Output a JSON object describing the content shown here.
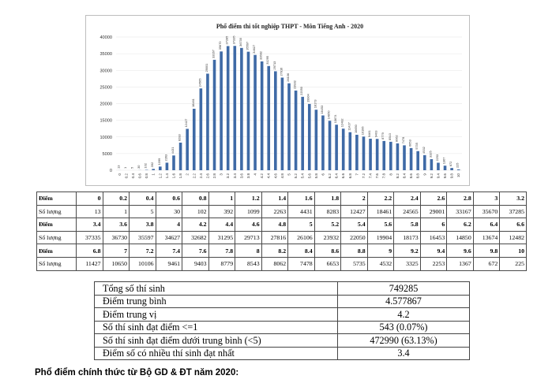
{
  "chart_data": {
    "type": "bar",
    "title": "Phổ điểm thi tốt nghiệp THPT - Môn Tiếng Anh - 2020",
    "ylim": [
      0,
      40000
    ],
    "yticks": [
      "0",
      "5000",
      "10000",
      "15000",
      "20000",
      "25000",
      "30000",
      "35000",
      "40000"
    ],
    "categories": [
      "0",
      "0.2",
      "0.4",
      "0.6",
      "0.8",
      "1",
      "1.2",
      "1.4",
      "1.6",
      "1.8",
      "2",
      "2.2",
      "2.4",
      "2.6",
      "2.8",
      "3",
      "3.2",
      "3.4",
      "3.6",
      "3.8",
      "4",
      "4.2",
      "4.4",
      "4.6",
      "4.8",
      "5",
      "5.2",
      "5.4",
      "5.6",
      "5.8",
      "6",
      "6.2",
      "6.4",
      "6.6",
      "6.8",
      "7",
      "7.2",
      "7.4",
      "7.6",
      "7.8",
      "8",
      "8.2",
      "8.4",
      "8.6",
      "8.8",
      "9",
      "9.2",
      "9.4",
      "9.6",
      "9.8",
      "10"
    ],
    "values": [
      13,
      1,
      5,
      30,
      102,
      392,
      1099,
      2263,
      4431,
      8283,
      12427,
      18461,
      24565,
      29001,
      33167,
      35670,
      37285,
      37335,
      36730,
      35597,
      34627,
      32682,
      31295,
      29713,
      27816,
      26106,
      23932,
      22050,
      19904,
      18173,
      16453,
      14850,
      13674,
      12482,
      11427,
      10650,
      10106,
      9461,
      9403,
      8779,
      8543,
      8062,
      7478,
      6653,
      5735,
      4532,
      3325,
      2253,
      1367,
      672,
      225
    ],
    "grid": true,
    "legend": "none"
  },
  "score_table": {
    "rows": [
      {
        "label": "Điểm",
        "cells": [
          "0",
          "0.2",
          "0.4",
          "0.6",
          "0.8",
          "1",
          "1.2",
          "1.4",
          "1.6",
          "1.8",
          "2",
          "2.2",
          "2.4",
          "2.6",
          "2.8",
          "3",
          "3.2"
        ]
      },
      {
        "label": "Số lượng",
        "cells": [
          "13",
          "1",
          "5",
          "30",
          "102",
          "392",
          "1099",
          "2263",
          "4431",
          "8283",
          "12427",
          "18461",
          "24565",
          "29001",
          "33167",
          "35670",
          "37285"
        ]
      },
      {
        "label": "Điểm",
        "cells": [
          "3.4",
          "3.6",
          "3.8",
          "4",
          "4.2",
          "4.4",
          "4.6",
          "4.8",
          "5",
          "5.2",
          "5.4",
          "5.6",
          "5.8",
          "6",
          "6.2",
          "6.4",
          "6.6"
        ]
      },
      {
        "label": "Số lượng",
        "cells": [
          "37335",
          "36730",
          "35597",
          "34627",
          "32682",
          "31295",
          "29713",
          "27816",
          "26106",
          "23932",
          "22050",
          "19904",
          "18173",
          "16453",
          "14850",
          "13674",
          "12482"
        ]
      },
      {
        "label": "Điểm",
        "cells": [
          "6.8",
          "7",
          "7.2",
          "7.4",
          "7.6",
          "7.8",
          "8",
          "8.2",
          "8.4",
          "8.6",
          "8.8",
          "9",
          "9.2",
          "9.4",
          "9.6",
          "9.8",
          "10"
        ]
      },
      {
        "label": "Số lượng",
        "cells": [
          "11427",
          "10650",
          "10106",
          "9461",
          "9403",
          "8779",
          "8543",
          "8062",
          "7478",
          "6653",
          "5735",
          "4532",
          "3325",
          "2253",
          "1367",
          "672",
          "225"
        ]
      }
    ]
  },
  "stats_table": {
    "rows": [
      {
        "label": "Tổng số thí sinh",
        "value": "749285"
      },
      {
        "label": "Điểm trung bình",
        "value": "4.577867"
      },
      {
        "label": "Điểm trung vị",
        "value": "4.2"
      },
      {
        "label": "Số thí sinh đạt điểm <=1",
        "value": "543 (0.07%)"
      },
      {
        "label": "Số thí sinh đạt điểm dưới trung bình (<5)",
        "value": "472990 (63.13%)"
      },
      {
        "label": "Điểm số có nhiều thí sinh đạt nhất",
        "value": "3.4"
      }
    ]
  },
  "caption": "Phổ điểm chính thức từ Bộ GD & ĐT năm 2020:"
}
